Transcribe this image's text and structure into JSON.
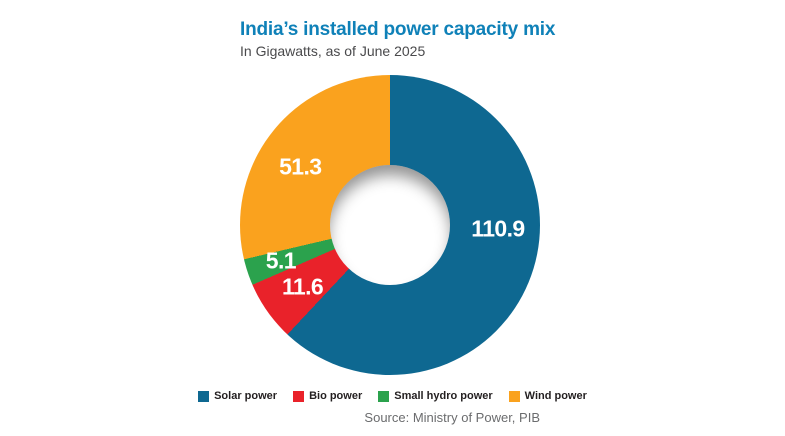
{
  "header": {
    "title": "India’s installed power capacity mix",
    "subtitle": "In Gigawatts, as of June 2025"
  },
  "chart_data": {
    "type": "pie",
    "subtype": "donut",
    "title": "India’s installed power capacity mix",
    "subtitle": "In Gigawatts, as of June 2025",
    "unit": "Gigawatts",
    "as_of": "June 2025",
    "direction": "clockwise",
    "start_angle_deg": 0,
    "hole_ratio": 0.4,
    "total": 178.9,
    "legend_position": "bottom",
    "slices": [
      {
        "label": "Solar power",
        "value": 110.9,
        "color": "#0e6891",
        "label_angle_deg": 92,
        "label_radius": 108
      },
      {
        "label": "Bio power",
        "value": 11.6,
        "color": "#e9222a",
        "label_angle_deg": 234.8,
        "label_radius": 107
      },
      {
        "label": "Small hydro power",
        "value": 5.1,
        "color": "#2ba24d",
        "label_angle_deg": 251.6,
        "label_radius": 115
      },
      {
        "label": "Wind power",
        "value": 51.3,
        "color": "#faa21e",
        "label_angle_deg": 303,
        "label_radius": 107
      }
    ]
  },
  "source": {
    "text": "Source: Ministry of Power, PIB"
  },
  "colors": {
    "background": "#ffffff",
    "title": "#0f81b8",
    "subtitle": "#4a4a4c",
    "value_label": "#ffffff",
    "legend_text": "#231f20",
    "source_text": "#6b6c6e"
  }
}
